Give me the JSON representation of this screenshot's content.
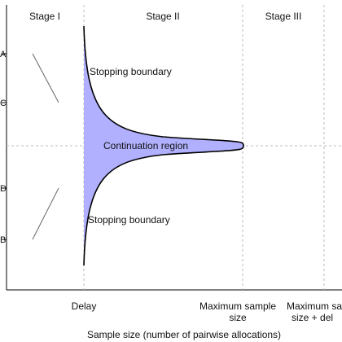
{
  "stages": {
    "stage1": "Stage I",
    "stage2": "Stage II",
    "stage3": "Stage III"
  },
  "y_ticks": [
    "A",
    "C",
    "D",
    "B"
  ],
  "regions": {
    "stopping_upper": "Stopping boundary",
    "continuation": "Continuation region",
    "stopping_lower": "Stopping boundary"
  },
  "x_labels": {
    "delay": "Delay",
    "max_sample_line1": "Maximum sample",
    "max_sample_line2": "size",
    "max_plus_delay_line1": "Maximum sa",
    "max_plus_delay_line2": "size + del"
  },
  "x_axis_title": "Sample size (number of pairwise allocations)",
  "colors": {
    "continuation_fill": "#b0b0ff",
    "boundary_stroke": "#000000",
    "divider": "#bbbbbb"
  }
}
